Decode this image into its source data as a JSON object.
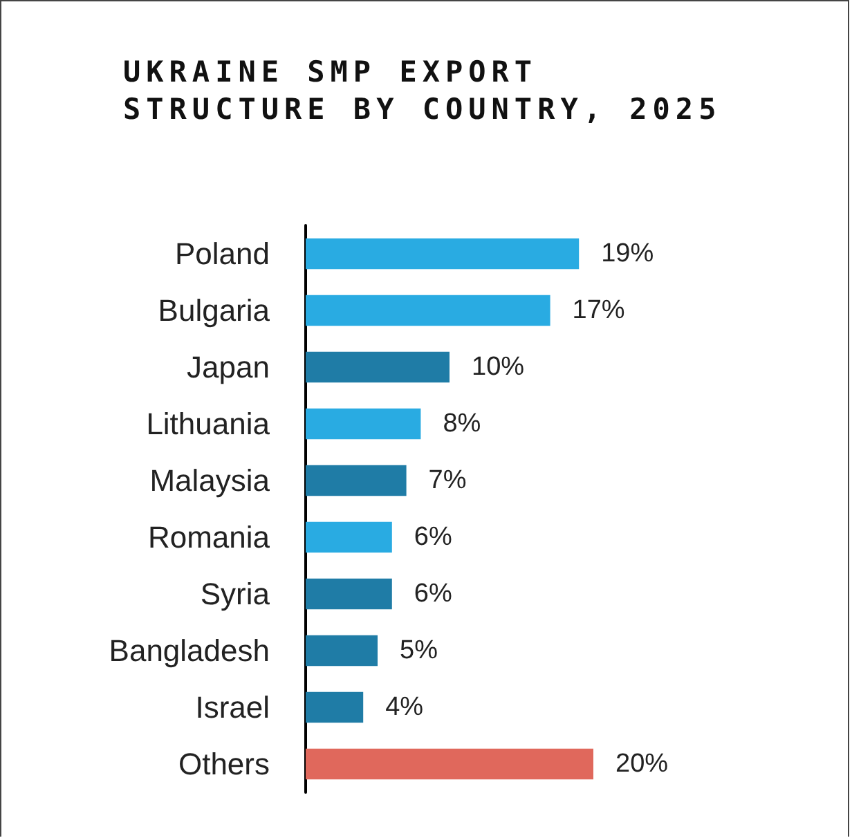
{
  "chart_data": {
    "type": "bar",
    "orientation": "horizontal",
    "title": "UKRAINE SMP EXPORT STRUCTURE BY COUNTRY, 2025",
    "categories": [
      "Poland",
      "Bulgaria",
      "Japan",
      "Lithuania",
      "Malaysia",
      "Romania",
      "Syria",
      "Bangladesh",
      "Israel",
      "Others"
    ],
    "values": [
      19,
      17,
      10,
      8,
      7,
      6,
      6,
      5,
      4,
      20
    ],
    "value_labels": [
      "19%",
      "17%",
      "10%",
      "8%",
      "7%",
      "6%",
      "6%",
      "5%",
      "4%",
      "20%"
    ],
    "colors": [
      "#29abe2",
      "#29abe2",
      "#1f7ca6",
      "#29abe2",
      "#1f7ca6",
      "#29abe2",
      "#1f7ca6",
      "#1f7ca6",
      "#1f7ca6",
      "#e0685c"
    ]
  }
}
